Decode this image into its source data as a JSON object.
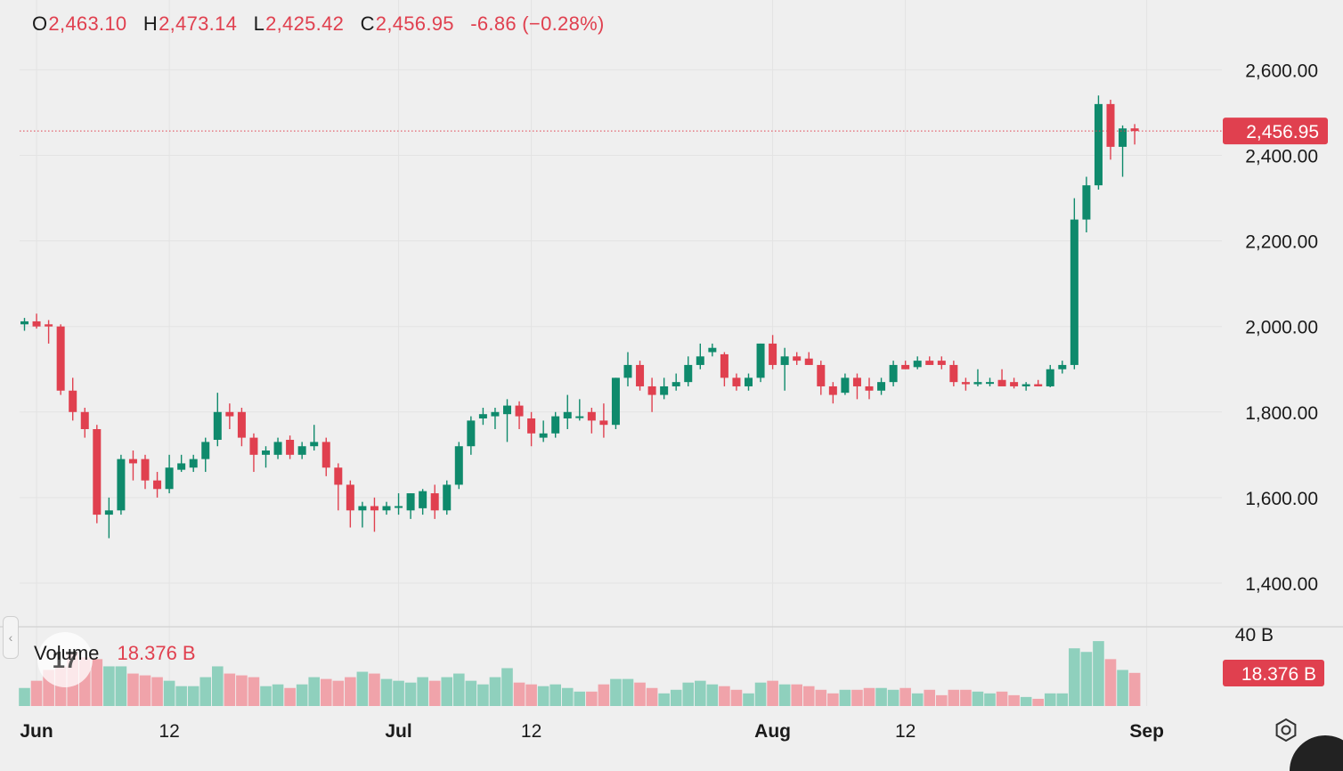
{
  "legend": {
    "open_label": "O",
    "open": "2,463.10",
    "high_label": "H",
    "high": "2,473.14",
    "low_label": "L",
    "low": "2,425.42",
    "close_label": "C",
    "close": "2,456.95",
    "change": "-6.86 (−0.28%)"
  },
  "volume_legend": {
    "label": "Volume",
    "value": "18.376 B"
  },
  "logo": {
    "text": "17"
  },
  "icons": {
    "collapse": "chevron-left-icon",
    "settings": "settings-icon"
  },
  "colors": {
    "up": "#0f8a6c",
    "down": "#e0404f",
    "up_volume": "#8fd0bd",
    "down_volume": "#f0a3aa",
    "grid": "#e3e3e3",
    "background": "#efefef"
  },
  "chart_data": {
    "type": "candlestick",
    "price_axis": {
      "min": 1300,
      "max": 2680,
      "ticks": [
        {
          "value": 2600,
          "label": "2,600.00"
        },
        {
          "value": 2400,
          "label": "2,400.00"
        },
        {
          "value": 2200,
          "label": "2,200.00"
        },
        {
          "value": 2000,
          "label": "2,000.00"
        },
        {
          "value": 1800,
          "label": "1,800.00"
        },
        {
          "value": 1600,
          "label": "1,600.00"
        },
        {
          "value": 1400,
          "label": "1,400.00"
        }
      ],
      "last_price": 2456.95,
      "last_price_label": "2,456.95"
    },
    "volume_axis": {
      "max_value": 40,
      "max_label": "40 B",
      "last_value": 18.376,
      "last_label": "18.376 B"
    },
    "time_axis": {
      "labels": [
        {
          "text": "Jun",
          "index": 1,
          "bold": true
        },
        {
          "text": "12",
          "index": 12,
          "bold": false
        },
        {
          "text": "Jul",
          "index": 31,
          "bold": true
        },
        {
          "text": "12",
          "index": 42,
          "bold": false
        },
        {
          "text": "Aug",
          "index": 62,
          "bold": true
        },
        {
          "text": "12",
          "index": 73,
          "bold": false
        },
        {
          "text": "Sep",
          "index": 93,
          "bold": true
        }
      ]
    },
    "candles": [
      [
        2005,
        2020,
        1990,
        2012,
        10
      ],
      [
        2012,
        2030,
        1995,
        2000,
        14
      ],
      [
        2005,
        2015,
        1960,
        2000,
        20
      ],
      [
        2000,
        2005,
        1840,
        1850,
        22
      ],
      [
        1850,
        1880,
        1780,
        1800,
        30
      ],
      [
        1800,
        1810,
        1740,
        1760,
        27
      ],
      [
        1760,
        1770,
        1540,
        1560,
        26
      ],
      [
        1560,
        1600,
        1505,
        1570,
        22
      ],
      [
        1570,
        1700,
        1560,
        1690,
        22
      ],
      [
        1690,
        1710,
        1640,
        1680,
        18
      ],
      [
        1690,
        1700,
        1620,
        1640,
        17
      ],
      [
        1640,
        1660,
        1600,
        1620,
        16
      ],
      [
        1620,
        1700,
        1610,
        1670,
        14
      ],
      [
        1665,
        1700,
        1660,
        1680,
        11
      ],
      [
        1670,
        1700,
        1660,
        1690,
        11
      ],
      [
        1690,
        1740,
        1660,
        1730,
        16
      ],
      [
        1735,
        1845,
        1720,
        1800,
        22
      ],
      [
        1800,
        1820,
        1760,
        1790,
        18
      ],
      [
        1800,
        1810,
        1720,
        1740,
        17
      ],
      [
        1740,
        1750,
        1660,
        1700,
        16
      ],
      [
        1700,
        1720,
        1670,
        1710,
        11
      ],
      [
        1700,
        1740,
        1690,
        1730,
        12
      ],
      [
        1735,
        1745,
        1690,
        1700,
        10
      ],
      [
        1700,
        1730,
        1690,
        1720,
        12
      ],
      [
        1720,
        1770,
        1710,
        1730,
        16
      ],
      [
        1730,
        1740,
        1650,
        1670,
        15
      ],
      [
        1670,
        1680,
        1570,
        1630,
        14
      ],
      [
        1630,
        1640,
        1530,
        1570,
        16
      ],
      [
        1570,
        1590,
        1530,
        1580,
        19
      ],
      [
        1580,
        1600,
        1520,
        1570,
        18
      ],
      [
        1570,
        1590,
        1560,
        1580,
        15
      ],
      [
        1580,
        1610,
        1560,
        1580,
        14
      ],
      [
        1570,
        1610,
        1550,
        1610,
        13
      ],
      [
        1575,
        1620,
        1560,
        1615,
        16
      ],
      [
        1610,
        1630,
        1550,
        1570,
        14
      ],
      [
        1570,
        1640,
        1560,
        1630,
        16
      ],
      [
        1630,
        1730,
        1620,
        1720,
        18
      ],
      [
        1720,
        1790,
        1700,
        1780,
        14
      ],
      [
        1785,
        1810,
        1770,
        1795,
        12
      ],
      [
        1790,
        1810,
        1760,
        1800,
        16
      ],
      [
        1795,
        1830,
        1730,
        1815,
        21
      ],
      [
        1815,
        1825,
        1760,
        1790,
        13
      ],
      [
        1785,
        1800,
        1720,
        1750,
        12
      ],
      [
        1740,
        1780,
        1730,
        1750,
        11
      ],
      [
        1750,
        1800,
        1740,
        1790,
        12
      ],
      [
        1785,
        1840,
        1760,
        1800,
        10
      ],
      [
        1790,
        1830,
        1780,
        1790,
        8
      ],
      [
        1800,
        1810,
        1750,
        1780,
        8
      ],
      [
        1780,
        1820,
        1740,
        1770,
        12
      ],
      [
        1770,
        1880,
        1760,
        1880,
        15
      ],
      [
        1880,
        1940,
        1860,
        1910,
        15
      ],
      [
        1910,
        1920,
        1850,
        1860,
        13
      ],
      [
        1860,
        1880,
        1800,
        1840,
        10
      ],
      [
        1840,
        1880,
        1830,
        1860,
        7
      ],
      [
        1860,
        1890,
        1850,
        1870,
        9
      ],
      [
        1870,
        1930,
        1860,
        1910,
        13
      ],
      [
        1910,
        1960,
        1900,
        1930,
        14
      ],
      [
        1940,
        1960,
        1930,
        1950,
        12
      ],
      [
        1935,
        1940,
        1860,
        1880,
        11
      ],
      [
        1880,
        1890,
        1850,
        1860,
        9
      ],
      [
        1860,
        1890,
        1850,
        1880,
        7
      ],
      [
        1880,
        1960,
        1870,
        1960,
        13
      ],
      [
        1960,
        1980,
        1900,
        1910,
        14
      ],
      [
        1910,
        1950,
        1850,
        1930,
        12
      ],
      [
        1930,
        1940,
        1910,
        1920,
        12
      ],
      [
        1925,
        1940,
        1910,
        1910,
        11
      ],
      [
        1910,
        1920,
        1840,
        1860,
        9
      ],
      [
        1860,
        1870,
        1820,
        1840,
        7
      ],
      [
        1845,
        1890,
        1840,
        1880,
        9
      ],
      [
        1880,
        1890,
        1830,
        1860,
        9
      ],
      [
        1860,
        1880,
        1830,
        1850,
        10
      ],
      [
        1850,
        1880,
        1840,
        1870,
        10
      ],
      [
        1870,
        1920,
        1860,
        1910,
        9
      ],
      [
        1910,
        1920,
        1900,
        1900,
        10
      ],
      [
        1905,
        1930,
        1900,
        1920,
        7
      ],
      [
        1920,
        1930,
        1910,
        1910,
        9
      ],
      [
        1920,
        1930,
        1900,
        1910,
        6
      ],
      [
        1910,
        1920,
        1860,
        1870,
        9
      ],
      [
        1870,
        1880,
        1850,
        1865,
        9
      ],
      [
        1865,
        1900,
        1860,
        1870,
        8
      ],
      [
        1870,
        1880,
        1860,
        1870,
        7
      ],
      [
        1875,
        1900,
        1865,
        1860,
        8
      ],
      [
        1870,
        1880,
        1855,
        1860,
        6
      ],
      [
        1860,
        1870,
        1850,
        1865,
        5
      ],
      [
        1865,
        1875,
        1860,
        1860,
        4
      ],
      [
        1860,
        1910,
        1858,
        1900,
        7
      ],
      [
        1900,
        1920,
        1890,
        1910,
        7
      ],
      [
        1910,
        2300,
        1900,
        2250,
        32
      ],
      [
        2250,
        2350,
        2220,
        2330,
        30
      ],
      [
        2330,
        2540,
        2320,
        2520,
        36
      ],
      [
        2520,
        2530,
        2390,
        2420,
        26
      ],
      [
        2420,
        2470,
        2350,
        2463,
        20
      ],
      [
        2463.1,
        2473.14,
        2425.42,
        2456.95,
        18.376
      ]
    ]
  }
}
